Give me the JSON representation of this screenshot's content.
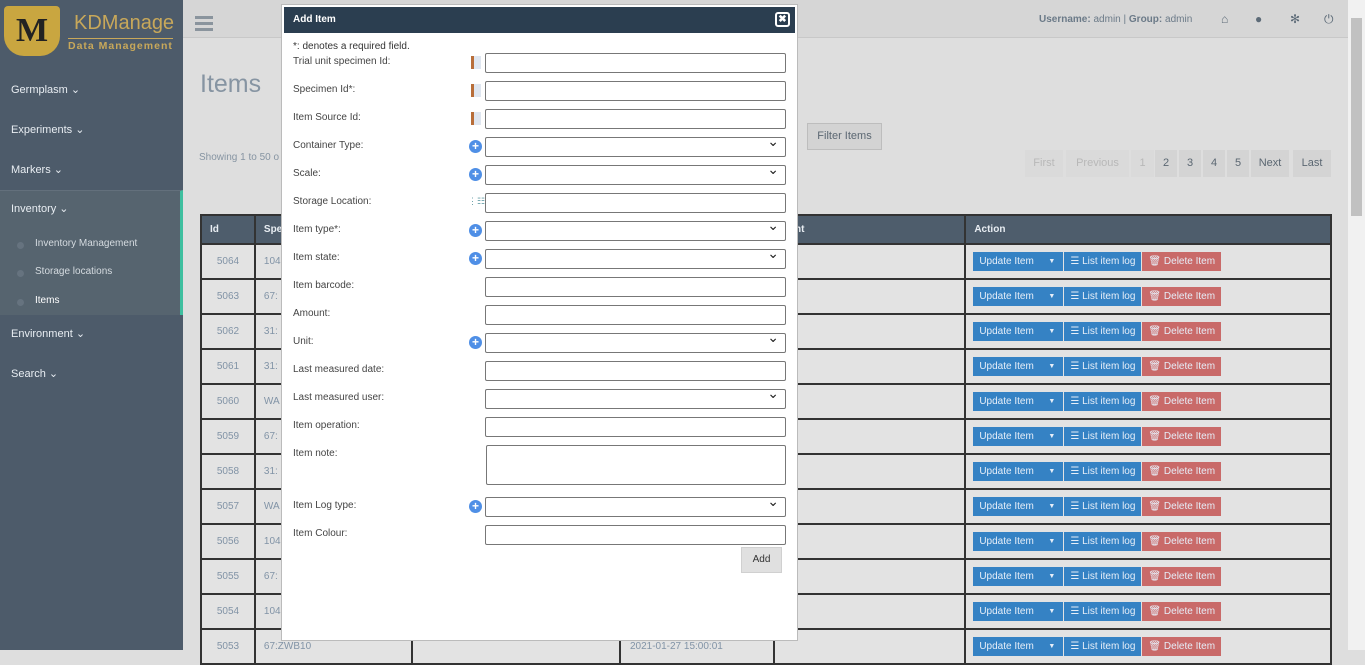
{
  "brand": {
    "logo_letter": "M",
    "name": "KDManage",
    "tagline": "Data Management"
  },
  "sidebar": {
    "items": [
      {
        "label": "Germplasm"
      },
      {
        "label": "Experiments"
      },
      {
        "label": "Markers"
      },
      {
        "label": "Inventory"
      },
      {
        "label": "Environment"
      },
      {
        "label": "Search"
      }
    ],
    "inventory_sub": [
      {
        "label": "Inventory Management"
      },
      {
        "label": "Storage locations"
      },
      {
        "label": "Items"
      }
    ]
  },
  "topbar": {
    "username_label": "Username:",
    "username": "admin",
    "group_label": "Group:",
    "group": "admin",
    "separator": "|"
  },
  "page": {
    "title": "Items",
    "showing": "Showing 1 to 50 o",
    "filter_label": "Filter Items"
  },
  "pagination": [
    "First",
    "Previous",
    "1",
    "2",
    "3",
    "4",
    "5",
    "Next",
    "Last"
  ],
  "table": {
    "headers": [
      "Id",
      "Spe",
      "",
      "",
      "ount",
      "Action"
    ],
    "rows": [
      {
        "id": "5064",
        "spec": "104"
      },
      {
        "id": "5063",
        "spec": "67:"
      },
      {
        "id": "5062",
        "spec": "31:"
      },
      {
        "id": "5061",
        "spec": "31:"
      },
      {
        "id": "5060",
        "spec": "WA"
      },
      {
        "id": "5059",
        "spec": "67:"
      },
      {
        "id": "5058",
        "spec": "31:"
      },
      {
        "id": "5057",
        "spec": "WA"
      },
      {
        "id": "5056",
        "spec": "104"
      },
      {
        "id": "5055",
        "spec": "67:"
      },
      {
        "id": "5054",
        "spec": "104"
      },
      {
        "id": "5053",
        "spec": "67:ZWB10",
        "date": "2021-01-27 15:00:01"
      }
    ],
    "actions": {
      "update": "Update Item",
      "log": "List item log",
      "delete": "Delete Item"
    }
  },
  "modal": {
    "title": "Add Item",
    "required_note": "*: denotes a required field.",
    "add_label": "Add",
    "fields": [
      {
        "label": "Trial unit specimen Id:",
        "type": "text",
        "icon": "book"
      },
      {
        "label": "Specimen Id*:",
        "type": "text",
        "icon": "book"
      },
      {
        "label": "Item Source Id:",
        "type": "text",
        "icon": "book"
      },
      {
        "label": "Container Type:",
        "type": "select",
        "icon": "plus"
      },
      {
        "label": "Scale:",
        "type": "select",
        "icon": "plus"
      },
      {
        "label": "Storage Location:",
        "type": "text",
        "icon": "tree"
      },
      {
        "label": "Item type*:",
        "type": "select",
        "icon": "plus"
      },
      {
        "label": "Item state:",
        "type": "select",
        "icon": "plus"
      },
      {
        "label": "Item barcode:",
        "type": "text",
        "icon": ""
      },
      {
        "label": "Amount:",
        "type": "text",
        "icon": ""
      },
      {
        "label": "Unit:",
        "type": "select",
        "icon": "plus"
      },
      {
        "label": "Last measured date:",
        "type": "text",
        "icon": ""
      },
      {
        "label": "Last measured user:",
        "type": "select",
        "icon": ""
      },
      {
        "label": "Item operation:",
        "type": "text",
        "icon": ""
      },
      {
        "label": "Item note:",
        "type": "textarea",
        "icon": ""
      },
      {
        "label": "Item Log type:",
        "type": "select",
        "icon": "plus"
      },
      {
        "label": "Item Colour:",
        "type": "text",
        "icon": ""
      }
    ]
  }
}
